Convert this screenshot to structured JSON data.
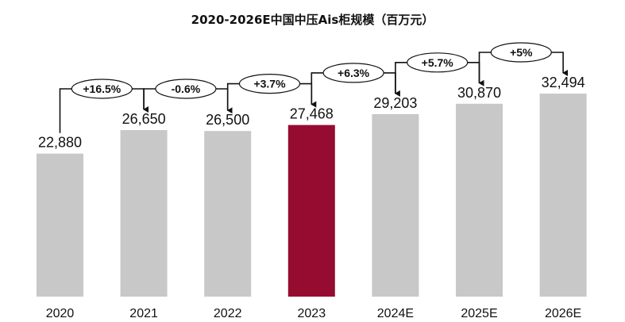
{
  "chart_data": {
    "type": "bar",
    "title": "2020-2026E中国中压Ais柜规模（百万元）",
    "categories": [
      "2020",
      "2021",
      "2022",
      "2023",
      "2024E",
      "2025E",
      "2026E"
    ],
    "values": [
      22880,
      26650,
      26500,
      27468,
      29203,
      30870,
      32494
    ],
    "value_labels": [
      "22,880",
      "26,650",
      "26,500",
      "27,468",
      "29,203",
      "30,870",
      "32,494"
    ],
    "growth_labels": [
      "+16.5%",
      "-0.6%",
      "+3.7%",
      "+6.3%",
      "+5.7%",
      "+5%"
    ],
    "highlight_index": 3,
    "colors": {
      "bar": "#c8c8c8",
      "highlight": "#960c30",
      "text": "#111111",
      "arrow": "#111111"
    },
    "axis": {
      "show_y_axis": false,
      "grid": false,
      "legend": "none"
    }
  }
}
